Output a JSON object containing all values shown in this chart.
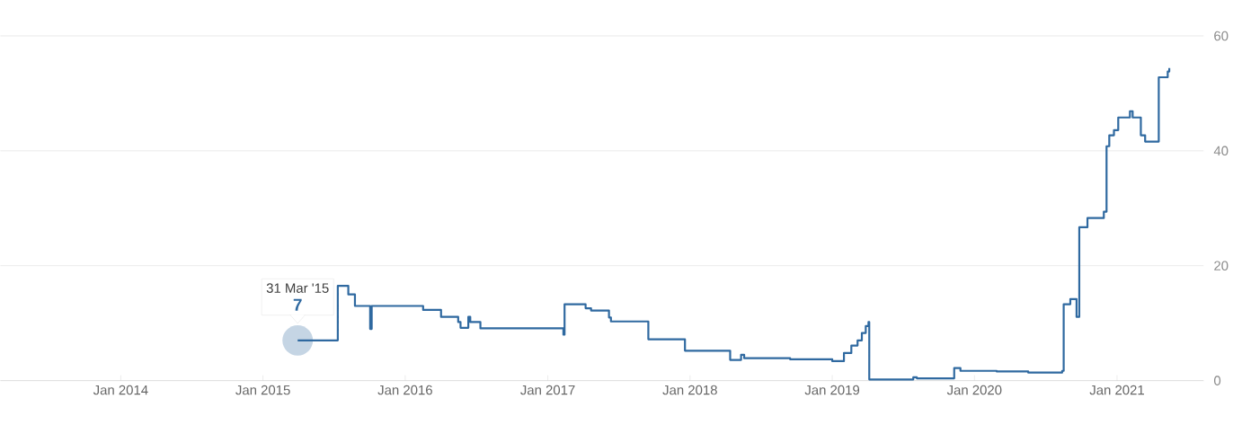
{
  "chart_data": {
    "type": "step",
    "x": [
      "2015-03-31",
      "2015-07-12",
      "2015-08-08",
      "2015-08-25",
      "2015-10-03",
      "2015-10-07",
      "2016-02-16",
      "2016-04-02",
      "2016-05-16",
      "2016-05-22",
      "2016-06-11",
      "2016-06-16",
      "2016-07-12",
      "2017-02-10",
      "2017-02-13",
      "2017-04-08",
      "2017-04-22",
      "2017-06-07",
      "2017-06-12",
      "2017-09-16",
      "2017-12-19",
      "2018-04-14",
      "2018-05-12",
      "2018-05-20",
      "2018-09-15",
      "2019-01-01",
      "2019-01-31",
      "2019-02-19",
      "2019-03-07",
      "2019-03-18",
      "2019-03-28",
      "2019-04-04",
      "2019-04-06",
      "2019-07-28",
      "2019-08-06",
      "2019-11-10",
      "2019-11-26",
      "2020-02-27",
      "2020-05-18",
      "2020-08-13",
      "2020-08-17",
      "2020-09-03",
      "2020-09-19",
      "2020-09-26",
      "2020-10-17",
      "2020-11-28",
      "2020-12-05",
      "2020-12-12",
      "2020-12-24",
      "2021-01-04",
      "2021-02-03",
      "2021-02-10",
      "2021-03-03",
      "2021-03-14",
      "2021-04-18",
      "2021-05-11",
      "2021-05-15"
    ],
    "series": [
      {
        "color": "#2f69a0",
        "values": [
          7,
          16.5,
          15,
          13,
          9,
          13,
          12.3,
          11.1,
          10.2,
          9.2,
          11.1,
          10.2,
          9.1,
          8,
          13.3,
          12.6,
          12.2,
          11,
          10.3,
          7.2,
          5.2,
          3.6,
          4.5,
          3.9,
          3.7,
          3.4,
          4.8,
          6.1,
          7,
          8.3,
          9.5,
          10.2,
          0.2,
          0.6,
          0.4,
          2.2,
          1.7,
          1.6,
          1.4,
          1.7,
          13.3,
          14.2,
          11.1,
          26.7,
          28.3,
          29.4,
          40.8,
          42.7,
          43.6,
          45.8,
          46.9,
          45.8,
          42.7,
          41.6,
          52.8,
          53.8,
          54.4
        ]
      }
    ],
    "xlim": [
      "2013-02-26",
      "2021-08-11"
    ],
    "xticks": [
      {
        "value": "2014-01-01",
        "label": "Jan 2014"
      },
      {
        "value": "2015-01-01",
        "label": "Jan 2015"
      },
      {
        "value": "2016-01-01",
        "label": "Jan 2016"
      },
      {
        "value": "2017-01-01",
        "label": "Jan 2017"
      },
      {
        "value": "2018-01-01",
        "label": "Jan 2018"
      },
      {
        "value": "2019-01-01",
        "label": "Jan 2019"
      },
      {
        "value": "2020-01-01",
        "label": "Jan 2020"
      },
      {
        "value": "2021-01-01",
        "label": "Jan 2021"
      }
    ],
    "ylim": [
      0,
      60
    ],
    "yticks": [
      0,
      20,
      40,
      60
    ],
    "grid": "y",
    "annotations": [
      "31 Mar '15",
      "7"
    ]
  }
}
